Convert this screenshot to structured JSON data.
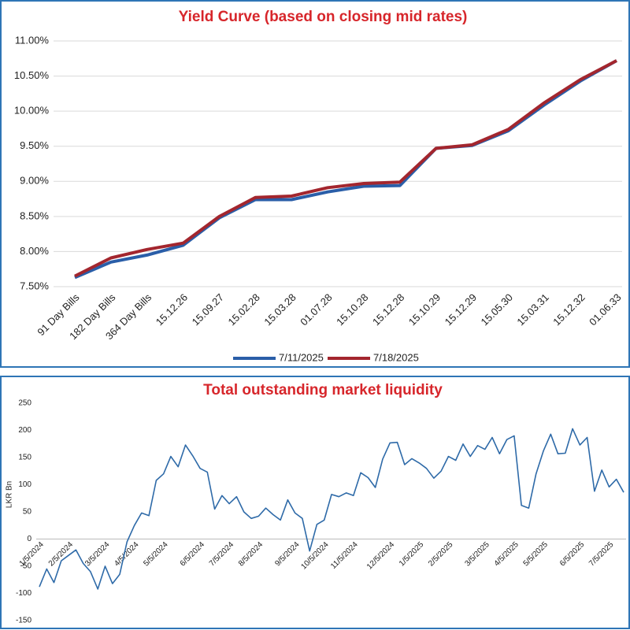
{
  "chart_data": [
    {
      "type": "line",
      "title": "Yield Curve (based on closing mid rates)",
      "categories": [
        "91 Day Bills",
        "182 Day Bills",
        "364 Day Bills",
        "15.12.26",
        "15.09.27",
        "15.02.28",
        "15.03.28",
        "01.07.28",
        "15.10.28",
        "15.12.28",
        "15.10.29",
        "15.12.29",
        "15.05.30",
        "15.03.31",
        "15.12.32",
        "01.06.33"
      ],
      "series": [
        {
          "name": "7/11/2025",
          "color": "#2a5ea8",
          "values": [
            7.63,
            7.85,
            7.95,
            8.09,
            8.48,
            8.74,
            8.74,
            8.85,
            8.93,
            8.94,
            9.47,
            9.51,
            9.72,
            10.09,
            10.43,
            10.72
          ]
        },
        {
          "name": "7/18/2025",
          "color": "#a3262e",
          "values": [
            7.65,
            7.91,
            8.03,
            8.12,
            8.5,
            8.77,
            8.79,
            8.91,
            8.97,
            8.99,
            9.47,
            9.52,
            9.74,
            10.12,
            10.45,
            10.72
          ]
        }
      ],
      "ylim": [
        7.5,
        11
      ],
      "yticks": [
        {
          "value": 7.5,
          "label": "7.50%"
        },
        {
          "value": 8,
          "label": "8.00%"
        },
        {
          "value": 8.5,
          "label": "8.50%"
        },
        {
          "value": 9,
          "label": "9.00%"
        },
        {
          "value": 9.5,
          "label": "9.50%"
        },
        {
          "value": 10,
          "label": "10.00%"
        },
        {
          "value": 10.5,
          "label": "10.50%"
        },
        {
          "value": 11,
          "label": "11.00%"
        }
      ],
      "grid": true,
      "legend": "bottom"
    },
    {
      "type": "line",
      "title": "Total outstanding market liquidity",
      "y_label": "LKR Bn",
      "categories": [
        "1/5/2024",
        null,
        null,
        null,
        "2/5/2024",
        null,
        null,
        null,
        null,
        "3/5/2024",
        null,
        null,
        null,
        "4/5/2024",
        null,
        null,
        null,
        "5/5/2024",
        null,
        null,
        null,
        null,
        "6/5/2024",
        null,
        null,
        null,
        "7/5/2024",
        null,
        null,
        null,
        "8/5/2024",
        null,
        null,
        null,
        null,
        "9/5/2024",
        null,
        null,
        null,
        "10/5/2024",
        null,
        null,
        null,
        "11/5/2024",
        null,
        null,
        null,
        null,
        "12/5/2024",
        null,
        null,
        null,
        "1/5/2025",
        null,
        null,
        null,
        "2/5/2025",
        null,
        null,
        null,
        null,
        "3/5/2025",
        null,
        null,
        null,
        "4/5/2025",
        null,
        null,
        null,
        "5/5/2025",
        null,
        null,
        null,
        null,
        "6/5/2025",
        null,
        null,
        null,
        "7/5/2025",
        null,
        null
      ],
      "series": [
        {
          "name": "Liquidity",
          "color": "#2e6aa8",
          "values": [
            -88,
            -55,
            -80,
            -40,
            -30,
            -20,
            -45,
            -60,
            -92,
            -50,
            -82,
            -65,
            -5,
            25,
            48,
            43,
            108,
            120,
            152,
            133,
            173,
            153,
            130,
            123,
            55,
            80,
            65,
            78,
            50,
            38,
            42,
            57,
            45,
            35,
            72,
            48,
            38,
            -22,
            27,
            35,
            82,
            78,
            85,
            80,
            122,
            113,
            95,
            147,
            177,
            178,
            137,
            148,
            140,
            130,
            112,
            125,
            152,
            145,
            175,
            152,
            172,
            165,
            187,
            157,
            183,
            190,
            62,
            57,
            120,
            162,
            193,
            157,
            158,
            203,
            173,
            187,
            88,
            127,
            96,
            110,
            86
          ]
        }
      ],
      "ylim": [
        -150,
        250
      ],
      "yticks": [
        -150,
        -100,
        -50,
        0,
        50,
        100,
        150,
        200,
        250
      ],
      "grid": false
    }
  ]
}
